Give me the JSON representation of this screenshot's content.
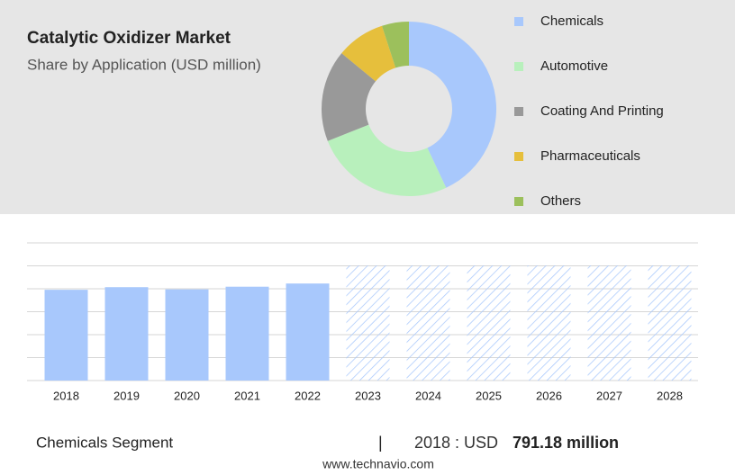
{
  "chart_data": [
    {
      "type": "pie",
      "title": "Catalytic Oxidizer Market",
      "subtitle": "Share by Application (USD million)",
      "categories": [
        "Chemicals",
        "Automotive",
        "Coating And Printing",
        "Pharmaceuticals",
        "Others"
      ],
      "values": [
        43,
        26,
        17,
        9,
        5
      ],
      "colors": [
        "#a8c8fc",
        "#b8f0bc",
        "#999999",
        "#e6bf3c",
        "#9cc05c"
      ]
    },
    {
      "type": "bar",
      "categories": [
        "2018",
        "2019",
        "2020",
        "2021",
        "2022",
        "2023",
        "2024",
        "2025",
        "2026",
        "2027",
        "2028"
      ],
      "values": [
        791.18,
        814,
        795,
        818,
        846,
        null,
        null,
        null,
        null,
        null,
        null
      ],
      "color": "#a8c8fc",
      "ylim": [
        0,
        1200
      ],
      "yticks": [
        0,
        200,
        400,
        600,
        800,
        1000,
        1200
      ],
      "grid": true
    }
  ],
  "footer": {
    "segment": "Chemicals Segment",
    "separator": "|",
    "year_label": "2018 : USD",
    "value_label": "791.18 million",
    "source": "www.technavio.com"
  }
}
